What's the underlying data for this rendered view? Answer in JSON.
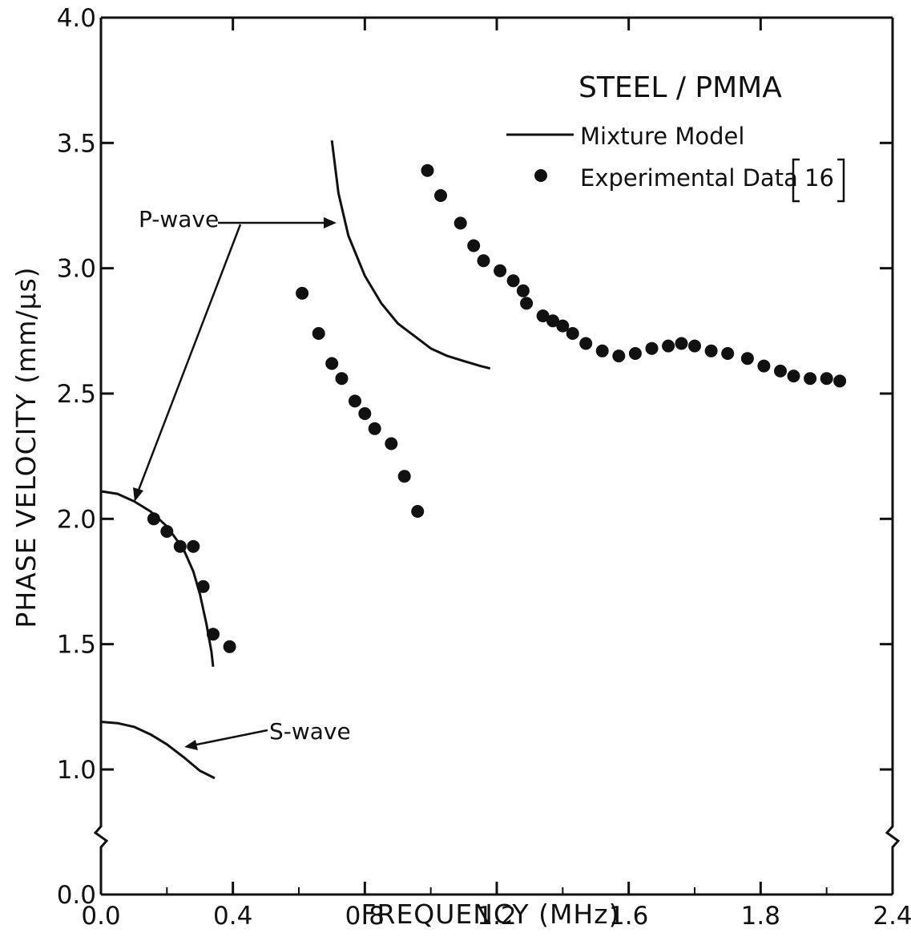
{
  "chart_data": {
    "type": "scatter",
    "title": "",
    "xlabel": "FREQUENCY (MHz)",
    "ylabel": "PHASE VELOCITY (mm/μs)",
    "xlim": [
      0.0,
      2.4
    ],
    "ylim": [
      0.0,
      4.0
    ],
    "axis_break": "y-axis between 0.0 and 1.0 (break marks on both vertical axes)",
    "x_ticks": [
      "0.0",
      "0.4",
      "0.8",
      "1.2",
      "1.6",
      "1.8",
      "2.4"
    ],
    "y_ticks": [
      "0.0",
      "1.0",
      "1.5",
      "2.0",
      "2.5",
      "3.0",
      "3.5",
      "4.0"
    ],
    "grid": false,
    "legend": {
      "placement": "top-right",
      "title": "STEEL / PMMA",
      "line_label": "Mixture Model",
      "marker_label": "Experimental Data",
      "marker_ref": "16"
    },
    "annotations": {
      "p_wave": "P-wave",
      "s_wave": "S-wave"
    },
    "series": [
      {
        "name": "Mixture Model",
        "kind": "line",
        "segments": [
          [
            [
              0.0,
              2.11
            ],
            [
              0.05,
              2.1
            ],
            [
              0.1,
              2.07
            ],
            [
              0.15,
              2.03
            ],
            [
              0.2,
              1.97
            ],
            [
              0.25,
              1.88
            ],
            [
              0.28,
              1.79
            ],
            [
              0.3,
              1.7
            ],
            [
              0.32,
              1.58
            ],
            [
              0.335,
              1.47
            ],
            [
              0.34,
              1.41
            ]
          ],
          [
            [
              0.0,
              1.19
            ],
            [
              0.05,
              1.185
            ],
            [
              0.1,
              1.17
            ],
            [
              0.15,
              1.14
            ],
            [
              0.2,
              1.1
            ],
            [
              0.25,
              1.05
            ],
            [
              0.3,
              0.99
            ],
            [
              0.345,
              0.93
            ]
          ],
          [
            [
              0.7,
              3.51
            ],
            [
              0.72,
              3.3
            ],
            [
              0.75,
              3.13
            ],
            [
              0.8,
              2.97
            ],
            [
              0.85,
              2.86
            ],
            [
              0.9,
              2.78
            ],
            [
              0.95,
              2.73
            ],
            [
              1.0,
              2.68
            ],
            [
              1.05,
              2.65
            ],
            [
              1.1,
              2.63
            ],
            [
              1.15,
              2.61
            ],
            [
              1.18,
              2.6
            ]
          ]
        ]
      },
      {
        "name": "Experimental Data",
        "kind": "scatter",
        "points": [
          [
            0.16,
            2.0
          ],
          [
            0.2,
            1.95
          ],
          [
            0.24,
            1.89
          ],
          [
            0.28,
            1.89
          ],
          [
            0.31,
            1.73
          ],
          [
            0.34,
            1.54
          ],
          [
            0.39,
            1.49
          ],
          [
            0.61,
            2.9
          ],
          [
            0.66,
            2.74
          ],
          [
            0.7,
            2.62
          ],
          [
            0.73,
            2.56
          ],
          [
            0.77,
            2.47
          ],
          [
            0.8,
            2.42
          ],
          [
            0.83,
            2.36
          ],
          [
            0.88,
            2.3
          ],
          [
            0.92,
            2.17
          ],
          [
            0.96,
            2.03
          ],
          [
            0.99,
            3.39
          ],
          [
            1.03,
            3.29
          ],
          [
            1.09,
            3.18
          ],
          [
            1.13,
            3.09
          ],
          [
            1.16,
            3.03
          ],
          [
            1.21,
            2.99
          ],
          [
            1.25,
            2.95
          ],
          [
            1.28,
            2.91
          ],
          [
            1.29,
            2.86
          ],
          [
            1.34,
            2.81
          ],
          [
            1.37,
            2.79
          ],
          [
            1.4,
            2.77
          ],
          [
            1.43,
            2.74
          ],
          [
            1.47,
            2.7
          ],
          [
            1.52,
            2.67
          ],
          [
            1.57,
            2.65
          ],
          [
            1.62,
            2.66
          ],
          [
            1.67,
            2.68
          ],
          [
            1.72,
            2.69
          ],
          [
            1.76,
            2.7
          ],
          [
            1.8,
            2.69
          ],
          [
            1.85,
            2.67
          ],
          [
            1.9,
            2.66
          ],
          [
            1.96,
            2.64
          ],
          [
            2.01,
            2.61
          ],
          [
            2.06,
            2.59
          ],
          [
            2.1,
            2.57
          ],
          [
            2.15,
            2.56
          ],
          [
            2.2,
            2.56
          ],
          [
            2.24,
            2.55
          ]
        ]
      }
    ]
  }
}
